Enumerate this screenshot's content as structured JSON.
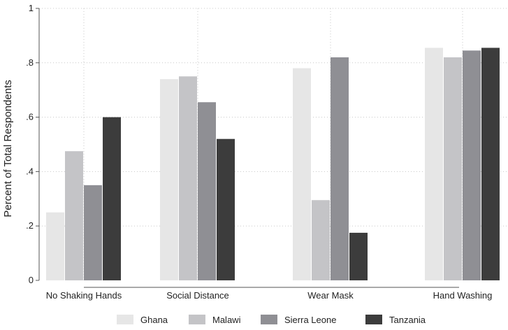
{
  "chart_data": {
    "type": "bar",
    "title": "",
    "xlabel": "",
    "ylabel": "Percent of Total Respondents",
    "ylim": [
      0,
      1
    ],
    "yticks": [
      {
        "value": 0,
        "label": "0"
      },
      {
        "value": 0.2,
        "label": ".2"
      },
      {
        "value": 0.4,
        "label": ".4"
      },
      {
        "value": 0.6,
        "label": ".6"
      },
      {
        "value": 0.8,
        "label": ".8"
      },
      {
        "value": 1,
        "label": "1"
      }
    ],
    "grid": true,
    "legend_position": "bottom",
    "categories": [
      "No Shaking Hands",
      "Social Distance",
      "Wear Mask",
      "Hand Washing"
    ],
    "series": [
      {
        "name": "Ghana",
        "color": "#e6e6e6",
        "values": [
          0.25,
          0.74,
          0.78,
          0.855
        ]
      },
      {
        "name": "Malawi",
        "color": "#c4c4c7",
        "values": [
          0.475,
          0.75,
          0.295,
          0.82
        ]
      },
      {
        "name": "Sierra Leone",
        "color": "#8f8f94",
        "values": [
          0.35,
          0.655,
          0.82,
          0.845
        ]
      },
      {
        "name": "Tanzania",
        "color": "#3c3c3c",
        "values": [
          0.6,
          0.52,
          0.175,
          0.855
        ]
      }
    ]
  }
}
